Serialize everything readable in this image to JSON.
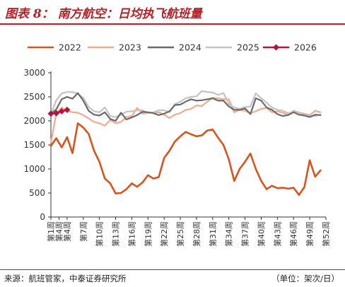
{
  "header": {
    "title": "图表 8： 南方航空：日均执飞航班量"
  },
  "footer": {
    "source": "来源：航班管家，中泰证券研究所",
    "unit": "（单位：架次/日）"
  },
  "colors": {
    "2022": "#d9531e",
    "2023": "#f4a98b",
    "2024": "#6b6b6b",
    "2025": "#c3c3c3",
    "2026": "#b5123e"
  },
  "chart_data": {
    "type": "line",
    "title": "南方航空：日均执飞航班量",
    "xlabel": "",
    "ylabel": "",
    "ylim": [
      0,
      3000
    ],
    "yticks": [
      0,
      500,
      1000,
      1500,
      2000,
      2500,
      3000
    ],
    "xlim": [
      1,
      52
    ],
    "xticks": [
      1,
      4,
      7,
      10,
      13,
      16,
      19,
      22,
      25,
      28,
      31,
      34,
      37,
      40,
      43,
      46,
      49,
      52
    ],
    "xtick_labels": [
      "第1周",
      "第4周",
      "第7周",
      "第10周",
      "第13周",
      "第16周",
      "第19周",
      "第22周",
      "第25周",
      "第28周",
      "第31周",
      "第34周",
      "第37周",
      "第40周",
      "第43周",
      "第46周",
      "第49周",
      "第52周"
    ],
    "extra_xtick_labels": [
      {
        "x": 2.5,
        "label": "第4周"
      }
    ],
    "grid": false,
    "legend": "top",
    "series": [
      {
        "name": "2022",
        "x": [
          1,
          2,
          3,
          4,
          5,
          6,
          7,
          8,
          9,
          10,
          11,
          12,
          13,
          14,
          15,
          16,
          17,
          18,
          19,
          20,
          21,
          22,
          23,
          24,
          25,
          26,
          27,
          28,
          29,
          30,
          31,
          32,
          33,
          34,
          35,
          36,
          37,
          38,
          39,
          40,
          41,
          42,
          43,
          44,
          45,
          46,
          47,
          48,
          49,
          50,
          51
        ],
        "values": [
          1480,
          1640,
          1450,
          1660,
          1330,
          1950,
          1860,
          1730,
          1380,
          1150,
          800,
          700,
          490,
          500,
          580,
          700,
          630,
          720,
          870,
          800,
          830,
          1230,
          1380,
          1570,
          1680,
          1770,
          1720,
          1680,
          1700,
          1800,
          1820,
          1650,
          1500,
          1200,
          750,
          1000,
          1150,
          1320,
          1000,
          750,
          580,
          650,
          600,
          610,
          590,
          610,
          460,
          620,
          1180,
          840,
          970
        ]
      },
      {
        "name": "2023",
        "x": [
          1,
          2,
          3,
          4,
          5,
          6,
          7,
          8,
          9,
          10,
          11,
          12,
          13,
          14,
          15,
          16,
          17,
          18,
          19,
          20,
          21,
          22,
          23,
          24,
          25,
          26,
          27,
          28,
          29,
          30,
          31,
          32,
          33,
          34,
          35,
          36,
          37,
          38,
          39,
          40,
          41,
          42,
          43,
          44,
          45,
          46,
          47,
          48,
          49,
          50,
          51
        ],
        "values": [
          1550,
          2150,
          2280,
          2210,
          2180,
          2170,
          2120,
          2050,
          1980,
          1950,
          1900,
          2020,
          1950,
          1980,
          2080,
          2100,
          2270,
          2150,
          2170,
          2170,
          2180,
          2130,
          2060,
          2130,
          2160,
          2230,
          2250,
          2320,
          2310,
          2400,
          2480,
          2470,
          2450,
          2450,
          2180,
          2230,
          2210,
          2160,
          2200,
          2250,
          2270,
          2180,
          2200,
          2170,
          2120,
          2210,
          2170,
          2150,
          2120,
          2210,
          2180
        ]
      },
      {
        "name": "2024",
        "x": [
          1,
          2,
          3,
          4,
          5,
          6,
          7,
          8,
          9,
          10,
          11,
          12,
          13,
          14,
          15,
          16,
          17,
          18,
          19,
          20,
          21,
          22,
          23,
          24,
          25,
          26,
          27,
          28,
          29,
          30,
          31,
          32,
          33,
          34,
          35,
          36,
          37,
          38,
          39,
          40,
          41,
          42,
          43,
          44,
          45,
          46,
          47,
          48,
          49,
          50,
          51
        ],
        "values": [
          2150,
          2240,
          2450,
          2500,
          2460,
          2580,
          2420,
          2210,
          2130,
          2110,
          2180,
          2040,
          2000,
          2170,
          2030,
          2070,
          2120,
          2190,
          2180,
          2160,
          2120,
          2150,
          2200,
          2330,
          2340,
          2400,
          2450,
          2420,
          2430,
          2450,
          2470,
          2420,
          2420,
          2300,
          2230,
          2230,
          2260,
          2140,
          2470,
          2420,
          2280,
          2230,
          2140,
          2100,
          2120,
          2180,
          2130,
          2110,
          2080,
          2130,
          2120
        ]
      },
      {
        "name": "2025",
        "x": [
          1,
          2,
          3,
          4,
          5,
          6,
          7,
          8,
          9,
          10,
          11,
          12,
          13,
          14,
          15,
          16,
          17,
          18,
          19,
          20,
          21,
          22,
          23,
          24,
          25,
          26,
          27,
          28,
          29,
          30,
          31,
          32,
          33,
          34,
          35,
          36,
          37,
          38,
          39,
          40,
          41,
          42,
          43,
          44,
          45,
          46,
          47,
          48,
          49,
          50,
          51
        ],
        "values": [
          2140,
          2430,
          2570,
          2600,
          2600,
          2560,
          2480,
          2290,
          2200,
          2180,
          2280,
          2100,
          2080,
          2130,
          2190,
          2200,
          2220,
          2220,
          2160,
          2180,
          2220,
          2220,
          2180,
          2350,
          2400,
          2470,
          2500,
          2510,
          2620,
          2600,
          2590,
          2540,
          2580,
          2350,
          2280,
          2250,
          2290,
          2300,
          2570,
          2470,
          2380,
          2280,
          2230,
          2210,
          2160,
          2190,
          2180,
          2110,
          2110,
          2100,
          2130
        ]
      },
      {
        "name": "2026",
        "x": [
          1,
          2,
          3,
          4
        ],
        "values": [
          2150,
          2160,
          2200,
          2230
        ]
      }
    ]
  }
}
